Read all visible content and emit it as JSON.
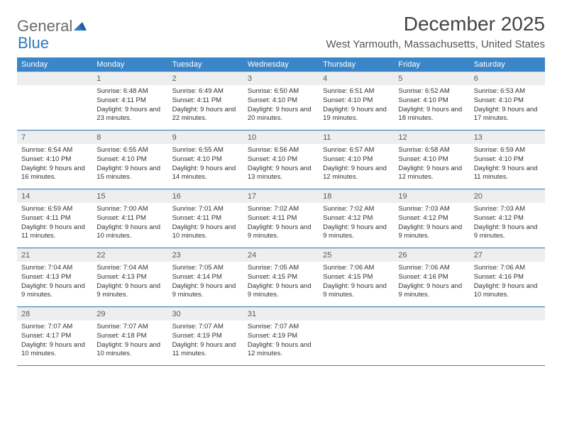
{
  "logo": {
    "part1": "General",
    "part2": "Blue"
  },
  "title": "December 2025",
  "location": "West Yarmouth, Massachusetts, United States",
  "colors": {
    "header_bg": "#3a86c8",
    "header_text": "#ffffff",
    "daynum_bg": "#eceef0",
    "week_border": "#3a86c8",
    "logo_accent": "#2a79c3"
  },
  "day_names": [
    "Sunday",
    "Monday",
    "Tuesday",
    "Wednesday",
    "Thursday",
    "Friday",
    "Saturday"
  ],
  "weeks": [
    [
      null,
      {
        "n": "1",
        "sr": "Sunrise: 6:48 AM",
        "ss": "Sunset: 4:11 PM",
        "dl": "Daylight: 9 hours and 23 minutes."
      },
      {
        "n": "2",
        "sr": "Sunrise: 6:49 AM",
        "ss": "Sunset: 4:11 PM",
        "dl": "Daylight: 9 hours and 22 minutes."
      },
      {
        "n": "3",
        "sr": "Sunrise: 6:50 AM",
        "ss": "Sunset: 4:10 PM",
        "dl": "Daylight: 9 hours and 20 minutes."
      },
      {
        "n": "4",
        "sr": "Sunrise: 6:51 AM",
        "ss": "Sunset: 4:10 PM",
        "dl": "Daylight: 9 hours and 19 minutes."
      },
      {
        "n": "5",
        "sr": "Sunrise: 6:52 AM",
        "ss": "Sunset: 4:10 PM",
        "dl": "Daylight: 9 hours and 18 minutes."
      },
      {
        "n": "6",
        "sr": "Sunrise: 6:53 AM",
        "ss": "Sunset: 4:10 PM",
        "dl": "Daylight: 9 hours and 17 minutes."
      }
    ],
    [
      {
        "n": "7",
        "sr": "Sunrise: 6:54 AM",
        "ss": "Sunset: 4:10 PM",
        "dl": "Daylight: 9 hours and 16 minutes."
      },
      {
        "n": "8",
        "sr": "Sunrise: 6:55 AM",
        "ss": "Sunset: 4:10 PM",
        "dl": "Daylight: 9 hours and 15 minutes."
      },
      {
        "n": "9",
        "sr": "Sunrise: 6:55 AM",
        "ss": "Sunset: 4:10 PM",
        "dl": "Daylight: 9 hours and 14 minutes."
      },
      {
        "n": "10",
        "sr": "Sunrise: 6:56 AM",
        "ss": "Sunset: 4:10 PM",
        "dl": "Daylight: 9 hours and 13 minutes."
      },
      {
        "n": "11",
        "sr": "Sunrise: 6:57 AM",
        "ss": "Sunset: 4:10 PM",
        "dl": "Daylight: 9 hours and 12 minutes."
      },
      {
        "n": "12",
        "sr": "Sunrise: 6:58 AM",
        "ss": "Sunset: 4:10 PM",
        "dl": "Daylight: 9 hours and 12 minutes."
      },
      {
        "n": "13",
        "sr": "Sunrise: 6:59 AM",
        "ss": "Sunset: 4:10 PM",
        "dl": "Daylight: 9 hours and 11 minutes."
      }
    ],
    [
      {
        "n": "14",
        "sr": "Sunrise: 6:59 AM",
        "ss": "Sunset: 4:11 PM",
        "dl": "Daylight: 9 hours and 11 minutes."
      },
      {
        "n": "15",
        "sr": "Sunrise: 7:00 AM",
        "ss": "Sunset: 4:11 PM",
        "dl": "Daylight: 9 hours and 10 minutes."
      },
      {
        "n": "16",
        "sr": "Sunrise: 7:01 AM",
        "ss": "Sunset: 4:11 PM",
        "dl": "Daylight: 9 hours and 10 minutes."
      },
      {
        "n": "17",
        "sr": "Sunrise: 7:02 AM",
        "ss": "Sunset: 4:11 PM",
        "dl": "Daylight: 9 hours and 9 minutes."
      },
      {
        "n": "18",
        "sr": "Sunrise: 7:02 AM",
        "ss": "Sunset: 4:12 PM",
        "dl": "Daylight: 9 hours and 9 minutes."
      },
      {
        "n": "19",
        "sr": "Sunrise: 7:03 AM",
        "ss": "Sunset: 4:12 PM",
        "dl": "Daylight: 9 hours and 9 minutes."
      },
      {
        "n": "20",
        "sr": "Sunrise: 7:03 AM",
        "ss": "Sunset: 4:12 PM",
        "dl": "Daylight: 9 hours and 9 minutes."
      }
    ],
    [
      {
        "n": "21",
        "sr": "Sunrise: 7:04 AM",
        "ss": "Sunset: 4:13 PM",
        "dl": "Daylight: 9 hours and 9 minutes."
      },
      {
        "n": "22",
        "sr": "Sunrise: 7:04 AM",
        "ss": "Sunset: 4:13 PM",
        "dl": "Daylight: 9 hours and 9 minutes."
      },
      {
        "n": "23",
        "sr": "Sunrise: 7:05 AM",
        "ss": "Sunset: 4:14 PM",
        "dl": "Daylight: 9 hours and 9 minutes."
      },
      {
        "n": "24",
        "sr": "Sunrise: 7:05 AM",
        "ss": "Sunset: 4:15 PM",
        "dl": "Daylight: 9 hours and 9 minutes."
      },
      {
        "n": "25",
        "sr": "Sunrise: 7:06 AM",
        "ss": "Sunset: 4:15 PM",
        "dl": "Daylight: 9 hours and 9 minutes."
      },
      {
        "n": "26",
        "sr": "Sunrise: 7:06 AM",
        "ss": "Sunset: 4:16 PM",
        "dl": "Daylight: 9 hours and 9 minutes."
      },
      {
        "n": "27",
        "sr": "Sunrise: 7:06 AM",
        "ss": "Sunset: 4:16 PM",
        "dl": "Daylight: 9 hours and 10 minutes."
      }
    ],
    [
      {
        "n": "28",
        "sr": "Sunrise: 7:07 AM",
        "ss": "Sunset: 4:17 PM",
        "dl": "Daylight: 9 hours and 10 minutes."
      },
      {
        "n": "29",
        "sr": "Sunrise: 7:07 AM",
        "ss": "Sunset: 4:18 PM",
        "dl": "Daylight: 9 hours and 10 minutes."
      },
      {
        "n": "30",
        "sr": "Sunrise: 7:07 AM",
        "ss": "Sunset: 4:19 PM",
        "dl": "Daylight: 9 hours and 11 minutes."
      },
      {
        "n": "31",
        "sr": "Sunrise: 7:07 AM",
        "ss": "Sunset: 4:19 PM",
        "dl": "Daylight: 9 hours and 12 minutes."
      },
      null,
      null,
      null
    ]
  ]
}
